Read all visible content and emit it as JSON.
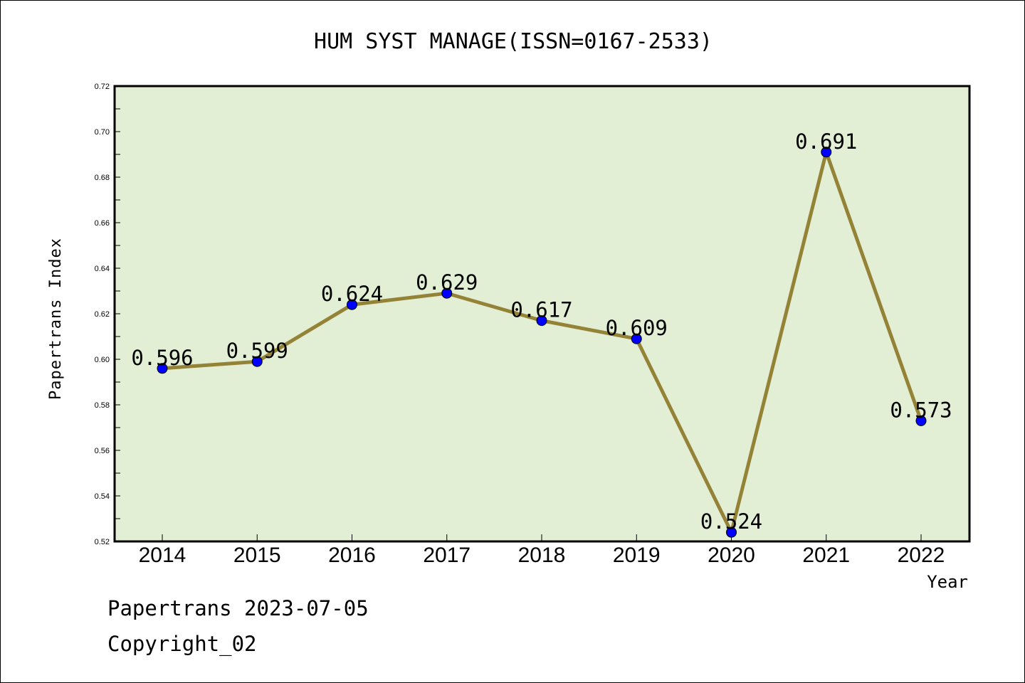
{
  "chart_data": {
    "type": "line",
    "title": "HUM SYST MANAGE(ISSN=0167-2533)",
    "xlabel": "Year",
    "ylabel": "Papertrans Index",
    "categories": [
      "2014",
      "2015",
      "2016",
      "2017",
      "2018",
      "2019",
      "2020",
      "2021",
      "2022"
    ],
    "series": [
      {
        "values": [
          0.596,
          0.599,
          0.624,
          0.629,
          0.617,
          0.609,
          0.524,
          0.691,
          0.573
        ],
        "labels": [
          "0.596",
          "0.599",
          "0.624",
          "0.629",
          "0.617",
          "0.609",
          "0.524",
          "0.691",
          "0.573"
        ]
      }
    ],
    "ylim": [
      0.52,
      0.72
    ],
    "yticks": [
      0.52,
      0.54,
      0.56,
      0.58,
      0.6,
      0.62,
      0.64,
      0.66,
      0.68,
      0.7,
      0.72
    ],
    "ytick_labels": [
      "0.52",
      "0.54",
      "0.56",
      "0.58",
      "0.60",
      "0.62",
      "0.64",
      "0.66",
      "0.68",
      "0.70",
      "0.72"
    ],
    "grid": false,
    "legend": "none",
    "colors": {
      "plot_background": "#e2efd5",
      "line": "#948237",
      "marker": "#0000ff",
      "frame": "#000000"
    }
  },
  "footer": {
    "line1": "Papertrans 2023-07-05",
    "line2": "Copyright_02"
  }
}
